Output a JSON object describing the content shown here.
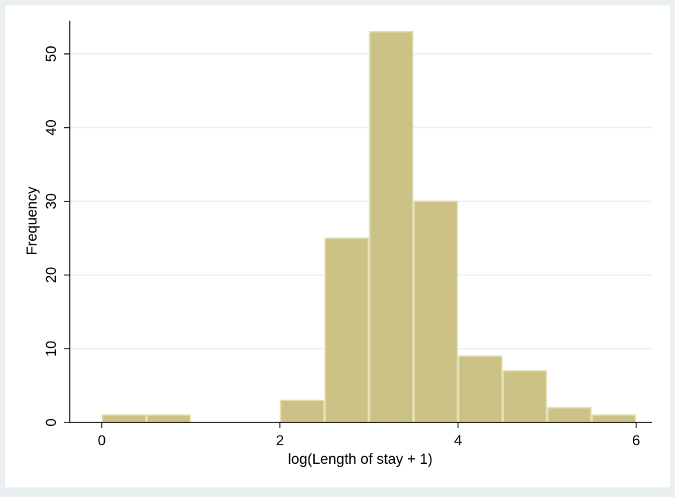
{
  "chart_data": {
    "type": "bar",
    "subtype": "histogram",
    "title": "",
    "xlabel": "log(Length of stay + 1)",
    "ylabel": "Frequency",
    "bins": [
      {
        "start": 0.0,
        "end": 0.5,
        "count": 1
      },
      {
        "start": 0.5,
        "end": 1.0,
        "count": 1
      },
      {
        "start": 1.0,
        "end": 1.5,
        "count": 0
      },
      {
        "start": 1.5,
        "end": 2.0,
        "count": 0
      },
      {
        "start": 2.0,
        "end": 2.5,
        "count": 3
      },
      {
        "start": 2.5,
        "end": 3.0,
        "count": 25
      },
      {
        "start": 3.0,
        "end": 3.5,
        "count": 53
      },
      {
        "start": 3.5,
        "end": 4.0,
        "count": 30
      },
      {
        "start": 4.0,
        "end": 4.5,
        "count": 9
      },
      {
        "start": 4.5,
        "end": 5.0,
        "count": 7
      },
      {
        "start": 5.0,
        "end": 5.5,
        "count": 2
      },
      {
        "start": 5.5,
        "end": 6.0,
        "count": 1
      }
    ],
    "xlim": [
      -0.36,
      6.18
    ],
    "ylim": [
      0,
      54.5
    ],
    "x_ticks": [
      "0",
      "2",
      "4",
      "6"
    ],
    "y_ticks": [
      "0",
      "10",
      "20",
      "30",
      "40",
      "50"
    ],
    "grid": true,
    "legend": "none",
    "colors": {
      "bar_fill": "#CCC285",
      "bar_edge": "#E4DDAF",
      "frame_background": "#EAF0F2",
      "plot_background": "#FFFFFF",
      "grid": "#EAF0F2",
      "axis": "#000000"
    }
  }
}
